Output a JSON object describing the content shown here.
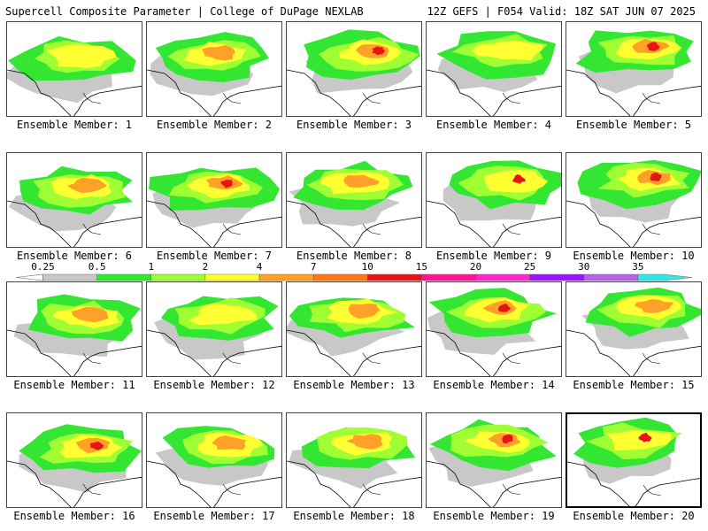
{
  "header": {
    "left": "Supercell Composite Parameter | College of DuPage NEXLAB",
    "right": "12Z GEFS | F054 Valid: 18Z SAT JUN 07 2025"
  },
  "panel_prefix": "Ensemble Member:",
  "members": [
    {
      "label": "Ensemble Member: 1"
    },
    {
      "label": "Ensemble Member: 2"
    },
    {
      "label": "Ensemble Member: 3"
    },
    {
      "label": "Ensemble Member: 4"
    },
    {
      "label": "Ensemble Member: 5"
    },
    {
      "label": "Ensemble Member: 6"
    },
    {
      "label": "Ensemble Member: 7"
    },
    {
      "label": "Ensemble Member: 8"
    },
    {
      "label": "Ensemble Member: 9"
    },
    {
      "label": "Ensemble Member: 10"
    },
    {
      "label": "Ensemble Member: 11"
    },
    {
      "label": "Ensemble Member: 12"
    },
    {
      "label": "Ensemble Member: 13"
    },
    {
      "label": "Ensemble Member: 14"
    },
    {
      "label": "Ensemble Member: 15"
    },
    {
      "label": "Ensemble Member: 16"
    },
    {
      "label": "Ensemble Member: 17"
    },
    {
      "label": "Ensemble Member: 18"
    },
    {
      "label": "Ensemble Member: 19"
    },
    {
      "label": "Ensemble Member: 20"
    }
  ],
  "selected_member": 20,
  "colorbar": {
    "labels": [
      "0.25",
      "0.5",
      "1",
      "2",
      "4",
      "7",
      "10",
      "15",
      "20",
      "25",
      "30",
      "35"
    ],
    "colors": [
      "#c8c8c8",
      "#32e632",
      "#a0ff32",
      "#ffff32",
      "#ffa028",
      "#ff7814",
      "#e61414",
      "#ff1493",
      "#ff28c8",
      "#9b14ff",
      "#b464e6",
      "#32e6e6"
    ]
  }
}
